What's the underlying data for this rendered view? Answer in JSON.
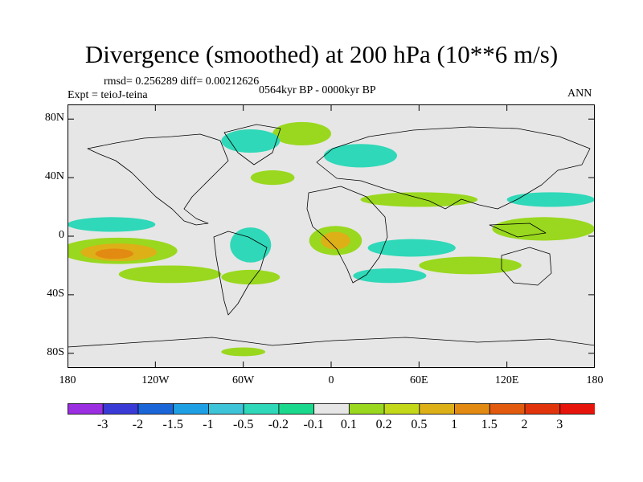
{
  "title": "Divergence (smoothed) at 200 hPa (10**6 m/s)",
  "stats": {
    "rmsd_text": "rmsd= 0.256289  diff= 0.00212626"
  },
  "experiment": "Expt = teioJ-teina",
  "period": "0564kyr BP - 0000kyr BP",
  "season": "ANN",
  "chart_data": {
    "type": "contour map",
    "variable": "Divergence (smoothed) at 200 hPa",
    "units": "10**6 m/s",
    "lon_range": [
      -180,
      180
    ],
    "lat_range": [
      -90,
      90
    ],
    "lat_ticks": [
      {
        "value": 80,
        "label": "80N"
      },
      {
        "value": 40,
        "label": "40N"
      },
      {
        "value": 0,
        "label": "0"
      },
      {
        "value": -40,
        "label": "40S"
      },
      {
        "value": -80,
        "label": "80S"
      }
    ],
    "lon_ticks": [
      {
        "value": -180,
        "label": "180"
      },
      {
        "value": -120,
        "label": "120W"
      },
      {
        "value": -60,
        "label": "60W"
      },
      {
        "value": 0,
        "label": "0"
      },
      {
        "value": 60,
        "label": "60E"
      },
      {
        "value": 120,
        "label": "120E"
      },
      {
        "value": 180,
        "label": "180"
      }
    ],
    "colorbar": {
      "levels": [
        "-3",
        "-2",
        "-1.5",
        "-1",
        "-0.5",
        "-0.2",
        "-0.1",
        "0.1",
        "0.2",
        "0.5",
        "1",
        "1.5",
        "2",
        "3"
      ],
      "colors": [
        "#9a2ee0",
        "#3a3ad6",
        "#1a66d9",
        "#1fa0e4",
        "#3dc4d8",
        "#2fd8b8",
        "#1ad88c",
        "#e6e6e6",
        "#99d81e",
        "#c4d81a",
        "#ddb018",
        "#e28a12",
        "#e25a0e",
        "#e2340c",
        "#e6140a"
      ]
    },
    "fill_background": "#e6e6e6",
    "regions": [
      {
        "name": "s-pacific-positive",
        "lon": -145,
        "lat": -10,
        "rlon": 40,
        "rlat": 9,
        "level": 0.2
      },
      {
        "name": "s-pacific-core",
        "lon": -145,
        "lat": -11,
        "rlon": 26,
        "rlat": 6,
        "level": 1.0
      },
      {
        "name": "s-pacific-peak",
        "lon": -148,
        "lat": -12,
        "rlon": 13,
        "rlat": 3.5,
        "level": 1.5
      },
      {
        "name": "n-pacific-negative",
        "lon": -150,
        "lat": 8,
        "rlon": 30,
        "rlat": 5,
        "level": -0.2
      },
      {
        "name": "s-pacific-belt",
        "lon": -110,
        "lat": -26,
        "rlon": 35,
        "rlat": 6,
        "level": 0.2
      },
      {
        "name": "south-america-neg",
        "lon": -55,
        "lat": -6,
        "rlon": 14,
        "rlat": 12,
        "level": -0.2
      },
      {
        "name": "s-atlantic-pos",
        "lon": -55,
        "lat": -28,
        "rlon": 20,
        "rlat": 5,
        "level": 0.2
      },
      {
        "name": "atlantic-africa-pos",
        "lon": 3,
        "lat": -3,
        "rlon": 18,
        "rlat": 10,
        "level": 0.2
      },
      {
        "name": "atlantic-africa-core",
        "lon": 3,
        "lat": -3,
        "rlon": 10,
        "rlat": 6,
        "level": 1.0
      },
      {
        "name": "indian-neg",
        "lon": 55,
        "lat": -8,
        "rlon": 30,
        "rlat": 6,
        "level": -0.2
      },
      {
        "name": "indian-pos",
        "lon": 95,
        "lat": -20,
        "rlon": 35,
        "rlat": 6,
        "level": 0.2
      },
      {
        "name": "s-indian-neg",
        "lon": 40,
        "lat": -27,
        "rlon": 25,
        "rlat": 5,
        "level": -0.2
      },
      {
        "name": "w-pacific-pos",
        "lon": 145,
        "lat": 5,
        "rlon": 35,
        "rlat": 8,
        "level": 0.2
      },
      {
        "name": "n-pacific-neg",
        "lon": 150,
        "lat": 25,
        "rlon": 30,
        "rlat": 5,
        "level": -0.2
      },
      {
        "name": "eurasia-pos",
        "lon": 60,
        "lat": 25,
        "rlon": 40,
        "rlat": 5,
        "level": 0.2
      },
      {
        "name": "n-atlantic-pos",
        "lon": -40,
        "lat": 40,
        "rlon": 15,
        "rlat": 5,
        "level": 0.2
      },
      {
        "name": "arctic-pos",
        "lon": -20,
        "lat": 70,
        "rlon": 20,
        "rlat": 8,
        "level": 0.2
      },
      {
        "name": "greenland-neg",
        "lon": -55,
        "lat": 65,
        "rlon": 20,
        "rlat": 8,
        "level": -0.2
      },
      {
        "name": "n-eurasia-neg",
        "lon": 20,
        "lat": 55,
        "rlon": 25,
        "rlat": 8,
        "level": -0.2
      },
      {
        "name": "antarctic-pos",
        "lon": -60,
        "lat": -79,
        "rlon": 15,
        "rlat": 3,
        "level": 0.2
      }
    ]
  }
}
